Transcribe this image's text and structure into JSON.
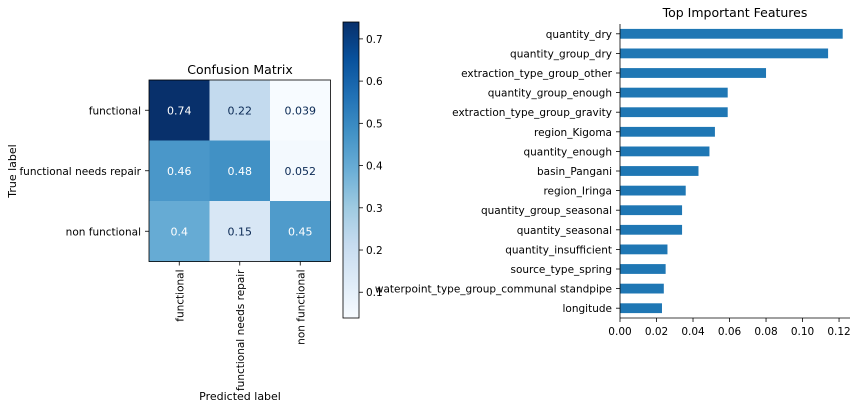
{
  "chart_data": [
    {
      "type": "heatmap",
      "title": "Confusion Matrix",
      "xlabel": "Predicted label",
      "ylabel": "True label",
      "row_labels": [
        "functional",
        "functional needs repair",
        "non functional"
      ],
      "col_labels": [
        "functional",
        "functional needs repair",
        "non functional"
      ],
      "cells": [
        [
          {
            "value": 0.74,
            "label": "0.74"
          },
          {
            "value": 0.22,
            "label": "0.22"
          },
          {
            "value": 0.039,
            "label": "0.039"
          }
        ],
        [
          {
            "value": 0.46,
            "label": "0.46"
          },
          {
            "value": 0.48,
            "label": "0.48"
          },
          {
            "value": 0.052,
            "label": "0.052"
          }
        ],
        [
          {
            "value": 0.4,
            "label": "0.4"
          },
          {
            "value": 0.15,
            "label": "0.15"
          },
          {
            "value": 0.45,
            "label": "0.45"
          }
        ]
      ],
      "colormap": "Blues",
      "colorbar": {
        "range": [
          0.039,
          0.74
        ],
        "ticks": [
          {
            "value": 0.1,
            "label": "0.1"
          },
          {
            "value": 0.2,
            "label": "0.2"
          },
          {
            "value": 0.3,
            "label": "0.3"
          },
          {
            "value": 0.4,
            "label": "0.4"
          },
          {
            "value": 0.5,
            "label": "0.5"
          },
          {
            "value": 0.6,
            "label": "0.6"
          },
          {
            "value": 0.7,
            "label": "0.7"
          }
        ]
      }
    },
    {
      "type": "bar",
      "orientation": "horizontal",
      "title": "Top Important Features",
      "color": "#1f77b4",
      "categories": [
        "quantity_dry",
        "quantity_group_dry",
        "extraction_type_group_other",
        "quantity_group_enough",
        "extraction_type_group_gravity",
        "region_Kigoma",
        "quantity_enough",
        "basin_Pangani",
        "region_Iringa",
        "quantity_group_seasonal",
        "quantity_seasonal",
        "quantity_insufficient",
        "source_type_spring",
        "waterpoint_type_group_communal standpipe",
        "longitude"
      ],
      "values": [
        0.122,
        0.114,
        0.08,
        0.059,
        0.059,
        0.052,
        0.049,
        0.043,
        0.036,
        0.034,
        0.034,
        0.026,
        0.025,
        0.024,
        0.023
      ],
      "xlim": [
        0,
        0.126
      ],
      "xticks": [
        {
          "value": 0.0,
          "label": "0.00"
        },
        {
          "value": 0.02,
          "label": "0.02"
        },
        {
          "value": 0.04,
          "label": "0.04"
        },
        {
          "value": 0.06,
          "label": "0.06"
        },
        {
          "value": 0.08,
          "label": "0.08"
        },
        {
          "value": 0.1,
          "label": "0.10"
        },
        {
          "value": 0.12,
          "label": "0.12"
        }
      ]
    }
  ]
}
